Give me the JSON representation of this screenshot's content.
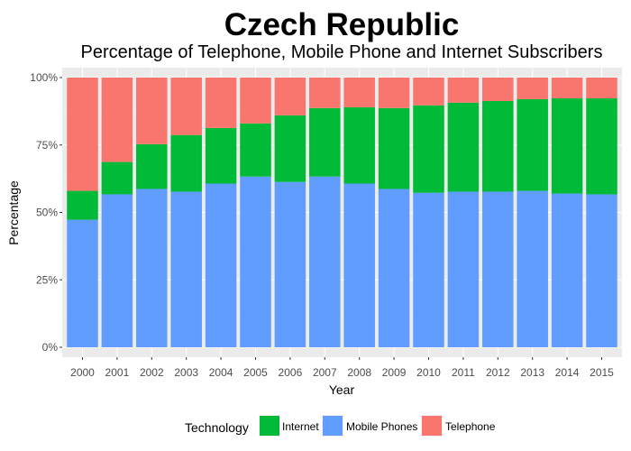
{
  "chart_data": {
    "type": "bar",
    "stacked": true,
    "percent_stacked": true,
    "title": "Czech Republic",
    "subtitle": "Percentage of Telephone, Mobile Phone and Internet Subscribers",
    "xlabel": "Year",
    "ylabel": "Percentage",
    "ylim": [
      0,
      100
    ],
    "yticks": [
      "0%",
      "25%",
      "50%",
      "75%",
      "100%"
    ],
    "ytick_values": [
      0,
      25,
      50,
      75,
      100
    ],
    "categories": [
      "2000",
      "2001",
      "2002",
      "2003",
      "2004",
      "2005",
      "2006",
      "2007",
      "2008",
      "2009",
      "2010",
      "2011",
      "2012",
      "2013",
      "2014",
      "2015"
    ],
    "series": [
      {
        "name": "Mobile Phones",
        "color": "#619CFF",
        "values": [
          47.3,
          56.7,
          58.7,
          57.7,
          60.7,
          63.3,
          61.3,
          63.3,
          60.7,
          58.7,
          57.3,
          57.7,
          57.7,
          58.0,
          57.0,
          56.7
        ]
      },
      {
        "name": "Internet",
        "color": "#00BA38",
        "values": [
          10.7,
          12.0,
          16.6,
          21.0,
          20.6,
          19.7,
          24.7,
          25.4,
          28.3,
          30.0,
          32.4,
          33.0,
          33.6,
          34.0,
          35.3,
          35.6
        ]
      },
      {
        "name": "Telephone",
        "color": "#F8766D",
        "values": [
          42.0,
          31.3,
          24.7,
          21.3,
          18.7,
          17.0,
          14.0,
          11.3,
          11.0,
          11.3,
          10.3,
          9.3,
          8.7,
          8.0,
          7.7,
          7.7
        ]
      }
    ],
    "legend": {
      "title": "Technology",
      "position": "bottom",
      "items": [
        {
          "label": "Internet",
          "color": "#00BA38"
        },
        {
          "label": "Mobile Phones",
          "color": "#619CFF"
        },
        {
          "label": "Telephone",
          "color": "#F8766D"
        }
      ]
    },
    "panel_background": "#EBEBEB",
    "grid": true
  }
}
